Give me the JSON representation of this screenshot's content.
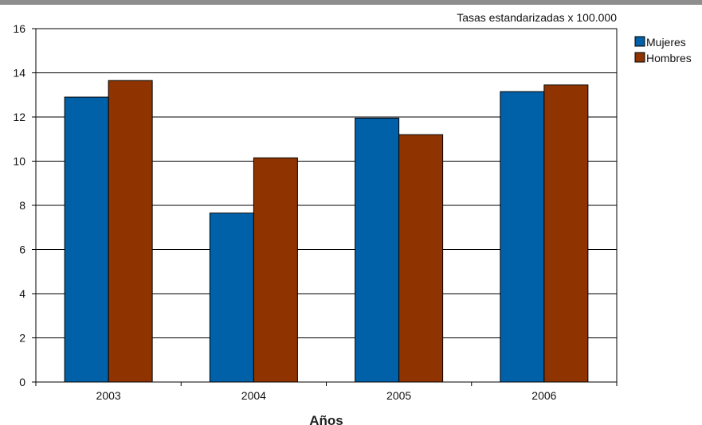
{
  "chart_data": {
    "type": "bar",
    "title": "",
    "annotation": "Tasas estandarizadas x 100.000",
    "xlabel": "Años",
    "ylabel": "",
    "categories": [
      "2003",
      "2004",
      "2005",
      "2006"
    ],
    "ylim": [
      0,
      16
    ],
    "yticks": [
      0,
      2,
      4,
      6,
      8,
      10,
      12,
      14,
      16
    ],
    "grid": true,
    "legend_position": "right",
    "series": [
      {
        "name": "Mujeres",
        "color": "#0061a8",
        "values": [
          12.9,
          7.65,
          11.95,
          13.15
        ]
      },
      {
        "name": "Hombres",
        "color": "#8f3400",
        "values": [
          13.65,
          10.15,
          11.2,
          13.45
        ]
      }
    ]
  }
}
